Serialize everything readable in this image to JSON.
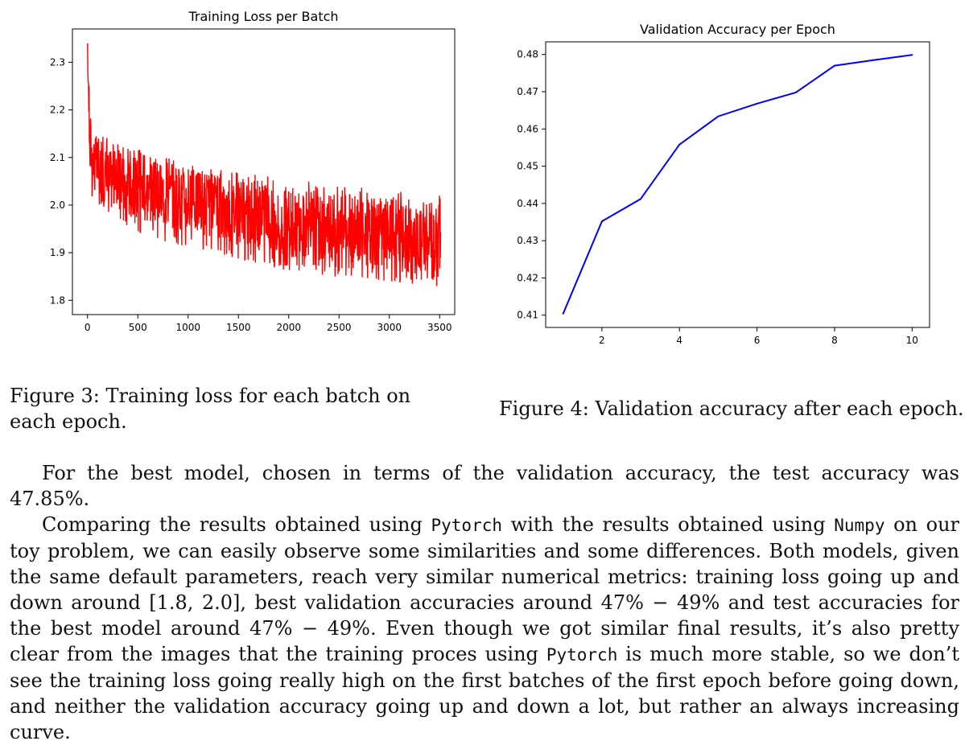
{
  "chart_data": [
    {
      "type": "line",
      "title": "Training Loss per Batch",
      "xlabel": "",
      "ylabel": "",
      "xlim": [
        -150,
        3650
      ],
      "ylim": [
        1.77,
        2.37
      ],
      "xticks": [
        0,
        500,
        1000,
        1500,
        2000,
        2500,
        3000,
        3500
      ],
      "xtick_labels": [
        "0",
        "500",
        "1000",
        "1500",
        "2000",
        "2500",
        "3000",
        "3500"
      ],
      "yticks": [
        1.8,
        1.9,
        2.0,
        2.1,
        2.2,
        2.3
      ],
      "ytick_labels": [
        "1.8",
        "1.9",
        "2.0",
        "2.1",
        "2.2",
        "2.3"
      ],
      "grid": false,
      "series": [
        {
          "color": "#ff0000",
          "x": [
            0,
            10,
            20,
            40,
            60,
            100,
            150,
            200,
            300,
            400,
            500,
            600,
            800,
            1000,
            1200,
            1400,
            1600,
            1800,
            2000,
            2200,
            2400,
            2600,
            2800,
            3000,
            3200,
            3400,
            3510
          ],
          "y": [
            2.34,
            2.25,
            2.15,
            2.11,
            2.09,
            2.08,
            2.07,
            2.06,
            2.05,
            2.04,
            2.04,
            2.03,
            2.02,
            2.01,
            2.0,
            1.99,
            1.98,
            1.97,
            1.96,
            1.96,
            1.95,
            1.95,
            1.94,
            1.94,
            1.93,
            1.93,
            1.93
          ],
          "band_upper": [
            2.34,
            2.3,
            2.21,
            2.19,
            2.18,
            2.16,
            2.15,
            2.14,
            2.13,
            2.12,
            2.12,
            2.11,
            2.1,
            2.09,
            2.08,
            2.07,
            2.07,
            2.06,
            2.05,
            2.05,
            2.04,
            2.04,
            2.04,
            2.03,
            2.03,
            2.02,
            2.02
          ],
          "band_lower": [
            2.34,
            2.12,
            2.08,
            2.02,
            2.0,
            1.99,
            1.98,
            1.97,
            1.96,
            1.95,
            1.94,
            1.93,
            1.92,
            1.91,
            1.9,
            1.89,
            1.88,
            1.87,
            1.86,
            1.86,
            1.85,
            1.85,
            1.84,
            1.83,
            1.83,
            1.83,
            1.83
          ]
        }
      ]
    },
    {
      "type": "line",
      "title": "Validation Accuracy per Epoch",
      "xlabel": "",
      "ylabel": "",
      "xlim": [
        0.55,
        10.45
      ],
      "ylim": [
        0.4067,
        0.4834
      ],
      "xticks": [
        2,
        4,
        6,
        8,
        10
      ],
      "xtick_labels": [
        "2",
        "4",
        "6",
        "8",
        "10"
      ],
      "yticks": [
        0.41,
        0.42,
        0.43,
        0.44,
        0.45,
        0.46,
        0.47,
        0.48
      ],
      "ytick_labels": [
        "0.41",
        "0.42",
        "0.43",
        "0.44",
        "0.45",
        "0.46",
        "0.47",
        "0.48"
      ],
      "grid": false,
      "series": [
        {
          "color": "#0000ff",
          "x": [
            1,
            2,
            3,
            4,
            5,
            6,
            7,
            8,
            9,
            10
          ],
          "y": [
            0.4104,
            0.4352,
            0.4412,
            0.4558,
            0.4634,
            0.4668,
            0.4698,
            0.477,
            0.4785,
            0.4799
          ]
        }
      ]
    }
  ],
  "captions": {
    "fig3": "Figure 3: Training loss for each batch on each epoch.",
    "fig4": "Figure 4: Validation accuracy after each epoch."
  },
  "paragraph1": "For the best model, chosen in terms of the validation accuracy, the test accuracy was 47.85%.",
  "paragraph2": {
    "s1": "Comparing the results obtained using ",
    "code1": "Pytorch",
    "s2": " with the results obtained using ",
    "code2": "Numpy",
    "s3": " on our toy problem, we can easily observe some similarities and some differences. Both models, given the same default parameters, reach very similar numerical metrics: training loss going up and down around [1.8, 2.0], best validation accuracies around 47% − 49% and test accuracies for the best model around 47% − 49%. Even though we got similar final results, it’s also pretty clear from the images that the training proces using ",
    "code3": "Pytorch",
    "s4": " is much more stable, so we don’t see the training loss going really high on the first batches of the first epoch before going down, and neither the validation accuracy going up and down a lot, but rather an always increasing curve."
  }
}
